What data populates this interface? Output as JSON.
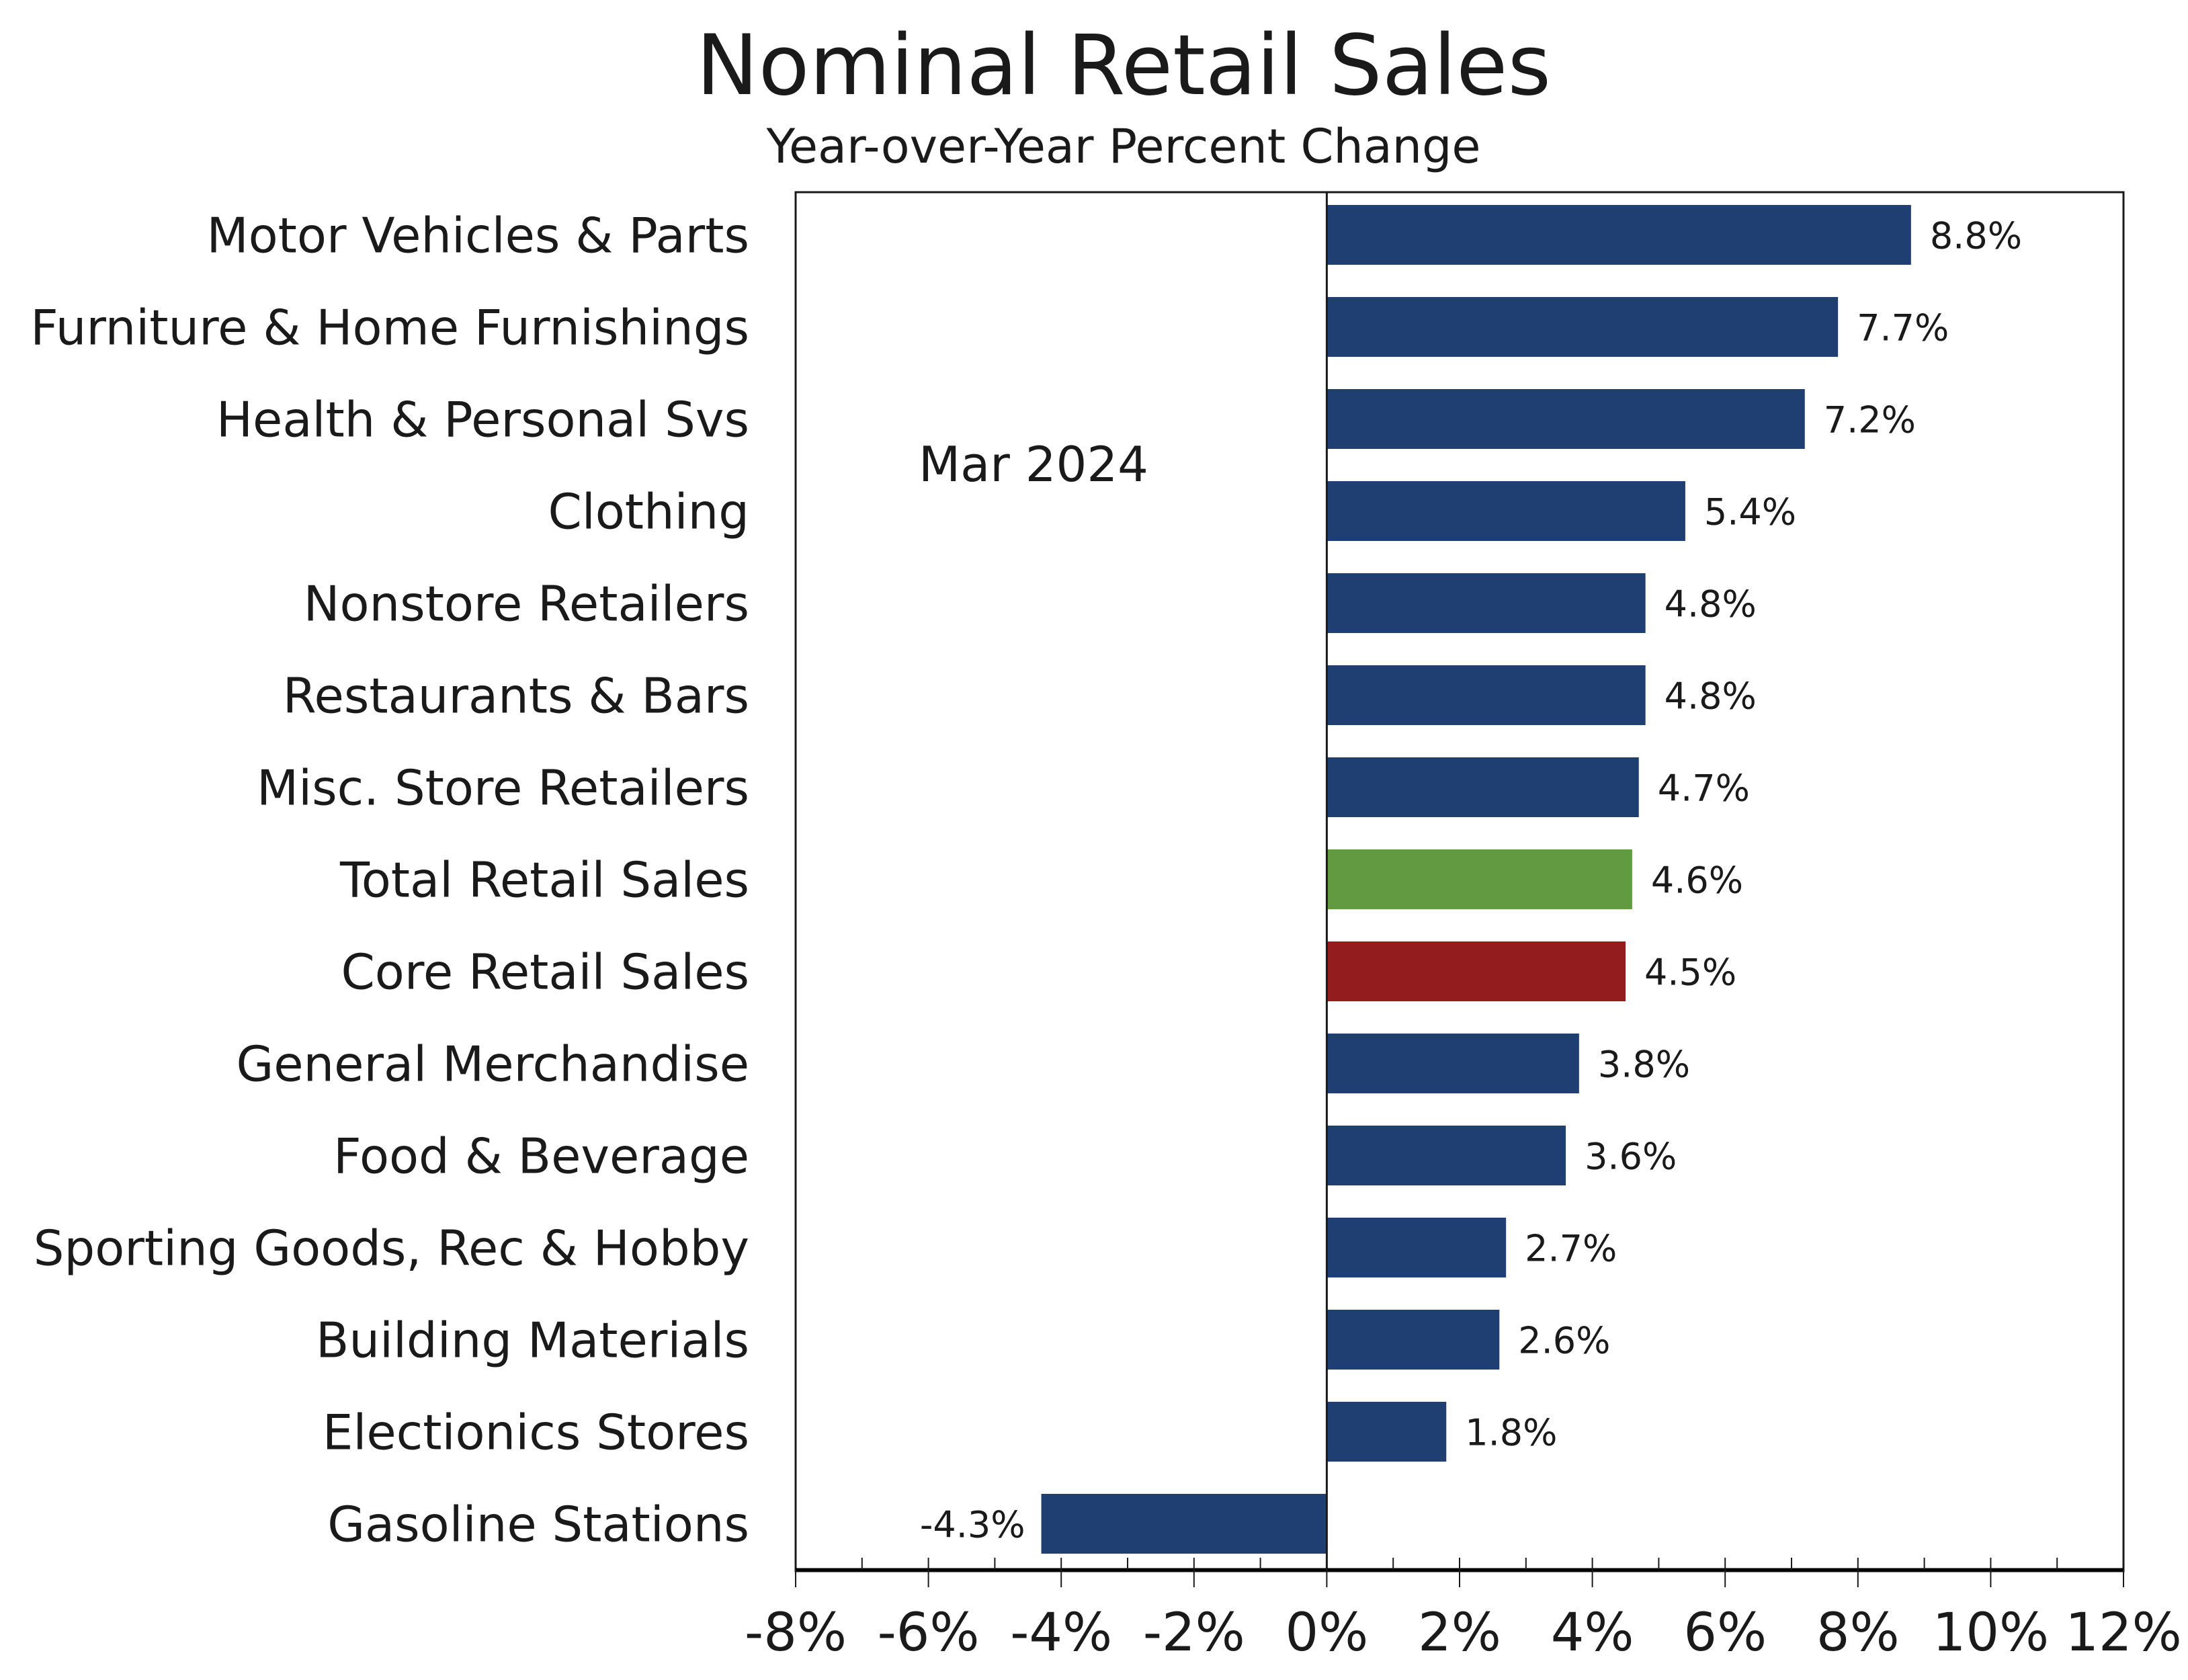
{
  "chart_data": {
    "type": "bar",
    "orientation": "horizontal",
    "title": "Nominal Retail Sales",
    "subtitle": "Year-over-Year Percent Change",
    "annotation": "Mar 2024",
    "xlabel": "",
    "ylabel": "",
    "xlim": [
      -8,
      12
    ],
    "xticks": [
      -8,
      -6,
      -4,
      -2,
      0,
      2,
      4,
      6,
      8,
      10,
      12
    ],
    "xtick_labels": [
      "-8%",
      "-6%",
      "-4%",
      "-2%",
      "0%",
      "2%",
      "4%",
      "6%",
      "8%",
      "10%",
      "12%"
    ],
    "grid": false,
    "legend": "none",
    "colors": {
      "default": "#1F3F73",
      "total": "#629A41",
      "core": "#921C1E"
    },
    "bars": [
      {
        "category": "Motor Vehicles & Parts",
        "value": 8.8,
        "label": "8.8%",
        "color": "#1F3F73"
      },
      {
        "category": "Furniture & Home Furnishings",
        "value": 7.7,
        "label": "7.7%",
        "color": "#1F3F73"
      },
      {
        "category": "Health & Personal Svs",
        "value": 7.2,
        "label": "7.2%",
        "color": "#1F3F73"
      },
      {
        "category": "Clothing",
        "value": 5.4,
        "label": "5.4%",
        "color": "#1F3F73"
      },
      {
        "category": "Nonstore Retailers",
        "value": 4.8,
        "label": "4.8%",
        "color": "#1F3F73"
      },
      {
        "category": "Restaurants & Bars",
        "value": 4.8,
        "label": "4.8%",
        "color": "#1F3F73"
      },
      {
        "category": "Misc. Store Retailers",
        "value": 4.7,
        "label": "4.7%",
        "color": "#1F3F73"
      },
      {
        "category": "Total Retail Sales",
        "value": 4.6,
        "label": "4.6%",
        "color": "#629A41"
      },
      {
        "category": "Core Retail Sales",
        "value": 4.5,
        "label": "4.5%",
        "color": "#921C1E"
      },
      {
        "category": "General Merchandise",
        "value": 3.8,
        "label": "3.8%",
        "color": "#1F3F73"
      },
      {
        "category": "Food & Beverage ",
        "value": 3.6,
        "label": "3.6%",
        "color": "#1F3F73"
      },
      {
        "category": "Sporting Goods, Rec & Hobby",
        "value": 2.7,
        "label": "2.7%",
        "color": "#1F3F73"
      },
      {
        "category": "Building Materials",
        "value": 2.6,
        "label": "2.6%",
        "color": "#1F3F73"
      },
      {
        "category": "Electionics Stores",
        "value": 1.8,
        "label": "1.8%",
        "color": "#1F3F73"
      },
      {
        "category": "Gasoline Stations",
        "value": -4.3,
        "label": "-4.3%",
        "color": "#1F3F73"
      }
    ]
  }
}
